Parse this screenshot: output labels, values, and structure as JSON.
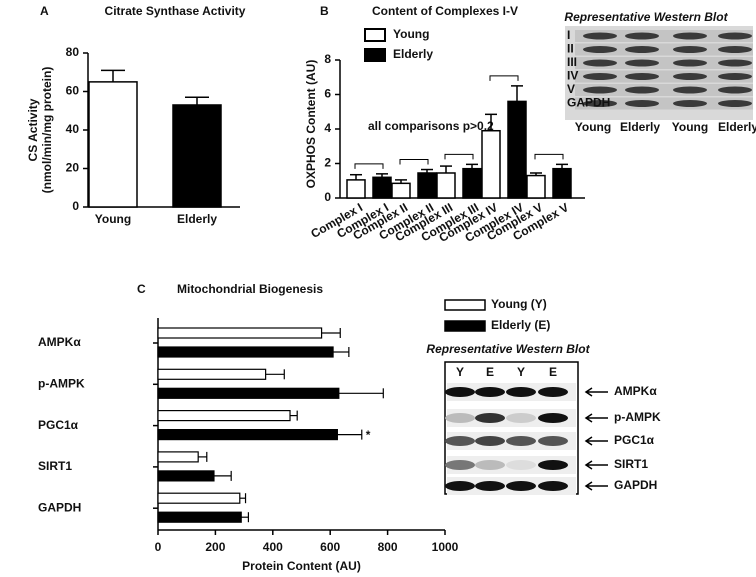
{
  "chart_data": [
    {
      "type": "bar",
      "panel": "A",
      "title": "Citrate Synthase Activity",
      "ylabel": [
        "CS Activity",
        "(nmol/min/mg protein)"
      ],
      "categories": [
        "Young",
        "Elderly"
      ],
      "values": [
        65,
        53
      ],
      "errors": [
        6,
        4
      ],
      "colors": [
        "#ffffff",
        "#000000"
      ],
      "ylim": [
        0,
        80
      ],
      "yticks": [
        0,
        20,
        40,
        60,
        80
      ]
    },
    {
      "type": "grouped_bar",
      "panel": "B",
      "title": "Content of Complexes I-V",
      "ylabel": "OXPHOS Content (AU)",
      "categories": [
        "Complex I",
        "Complex II",
        "Complex III",
        "Complex IV",
        "Complex V"
      ],
      "series": [
        {
          "name": "Young",
          "color": "#ffffff",
          "values": [
            1.05,
            0.85,
            1.45,
            3.9,
            1.3
          ],
          "errors": [
            0.3,
            0.2,
            0.4,
            0.95,
            0.15
          ]
        },
        {
          "name": "Elderly",
          "color": "#000000",
          "values": [
            1.2,
            1.45,
            1.7,
            5.6,
            1.7
          ],
          "errors": [
            0.2,
            0.2,
            0.25,
            0.9,
            0.25
          ]
        }
      ],
      "ylim": [
        0,
        8
      ],
      "yticks": [
        0,
        2,
        4,
        6,
        8
      ],
      "annotation": "all comparisons p>0.2",
      "blot": {
        "title": "Representative Western Blot",
        "rows": [
          "I",
          "II",
          "III",
          "IV",
          "V",
          "GAPDH"
        ],
        "columns": [
          "Young",
          "Elderly",
          "Young",
          "Elderly"
        ]
      }
    },
    {
      "type": "hbar",
      "panel": "C",
      "title": "Mitochondrial Biogenesis",
      "xlabel": "Protein Content (AU)",
      "categories": [
        "AMPKα",
        "p-AMPK",
        "PGC1α",
        "SIRT1",
        "GAPDH"
      ],
      "series": [
        {
          "name": "Young (Y)",
          "color": "#ffffff",
          "values": [
            570,
            375,
            460,
            140,
            285
          ],
          "errors": [
            65,
            65,
            25,
            30,
            20
          ]
        },
        {
          "name": "Elderly (E)",
          "color": "#000000",
          "values": [
            610,
            630,
            625,
            195,
            290
          ],
          "errors": [
            55,
            155,
            85,
            60,
            25
          ]
        }
      ],
      "xlim": [
        0,
        1000
      ],
      "xticks": [
        0,
        200,
        400,
        600,
        800,
        1000
      ],
      "annotation": "*",
      "blot": {
        "title": "Representative Western Blot",
        "columns": [
          "Y",
          "E",
          "Y",
          "E"
        ],
        "rows": [
          "AMPKα",
          "p-AMPK",
          "PGC1α",
          "SIRT1",
          "GAPDH"
        ]
      }
    }
  ]
}
